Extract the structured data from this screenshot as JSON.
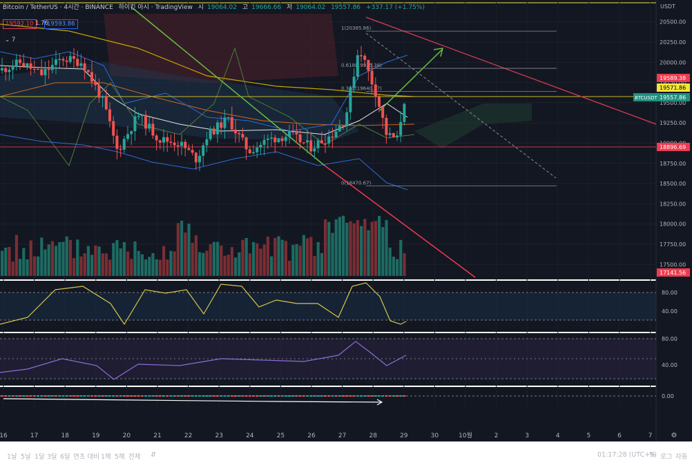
{
  "legend": {
    "symbol": "Bitcoin / TetherUS · 4시간 · BINANCE",
    "source": "하이킨 아시 · TradingView",
    "open_label": "시",
    "open": "19064.02",
    "high_label": "고",
    "high": "19666.66",
    "low_label": "저",
    "low": "19064.02",
    "close": "19557.86",
    "change": "+337.17 (+1.75%)",
    "indicator_a": "19592.10",
    "indicator_ratio": "1.76",
    "indicator_b": "19593.86",
    "collapse_count": "7"
  },
  "price_scale": {
    "currency": "USDT",
    "ticks": [
      "20500.00",
      "20250.00",
      "20000.00",
      "19750.00",
      "19500.00",
      "19250.00",
      "19000.00",
      "18750.00",
      "18500.00",
      "18250.00",
      "18000.00",
      "17750.00",
      "17500.00"
    ],
    "badges": [
      {
        "label": "19589.38",
        "bg": "#ef3b4f",
        "fg": "#ffffff"
      },
      {
        "label": "19571.86",
        "bg": "#f3e53b",
        "fg": "#000000"
      },
      {
        "label": "19557.86",
        "bg": "#1f8f7e",
        "fg": "#ffffff"
      },
      {
        "label": "18896.69",
        "bg": "#ef3b4f",
        "fg": "#ffffff"
      },
      {
        "label": "17141.56",
        "bg": "#ef3b4f",
        "fg": "#ffffff"
      }
    ],
    "symbol_tag": "BTCUSDT"
  },
  "fib": {
    "levels": [
      {
        "label": "1(20385.86)",
        "price": 20385.86
      },
      {
        "label": "0.618(19925.38)",
        "price": 19925.38
      },
      {
        "label": "0.382(19640.27)",
        "price": 19640.27
      },
      {
        "label": "0(18470.67)",
        "price": 18470.67
      }
    ]
  },
  "oscillators": {
    "pane1_ticks": [
      "80.00",
      "40.00"
    ],
    "pane2_ticks": [
      "80.00",
      "40.00"
    ],
    "pane3_ticks": [
      "0.00"
    ]
  },
  "time_axis": {
    "labels": [
      "16",
      "17",
      "18",
      "19",
      "20",
      "21",
      "22",
      "23",
      "24",
      "25",
      "26",
      "27",
      "28",
      "29",
      "30",
      "10월",
      "2",
      "3",
      "4",
      "5",
      "6",
      "7"
    ]
  },
  "toolbar": {
    "timeframes": [
      "1날",
      "5날",
      "1달",
      "3달",
      "6달",
      "연초 대비",
      "1해",
      "5해",
      "전체"
    ],
    "clock": "01:17:28 (UTC+9)",
    "percent": "%",
    "log": "로그",
    "auto": "자동"
  },
  "chart_data": {
    "type": "candlestick",
    "title": "Bitcoin / TetherUS · 4시간 · BINANCE",
    "ylim": [
      17300,
      20700
    ],
    "x_range_days": [
      "16",
      "7"
    ],
    "series_last": {
      "open": 19064.02,
      "high": 19666.66,
      "low": 19064.02,
      "close": 19557.86
    },
    "colors": {
      "up": "#26a69a",
      "down": "#ef5350"
    }
  }
}
